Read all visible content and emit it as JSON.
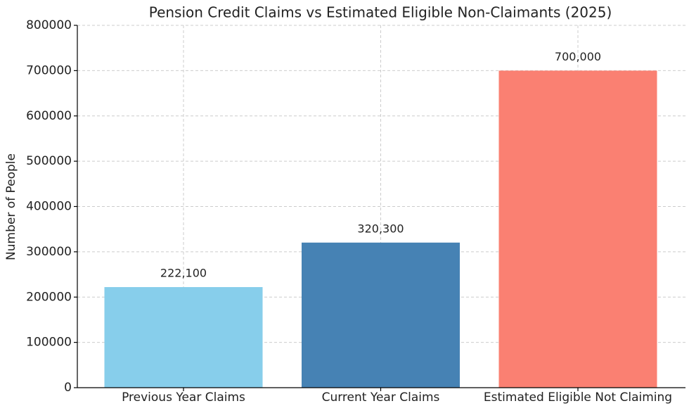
{
  "chart_data": {
    "type": "bar",
    "title": "Pension Credit Claims vs Estimated Eligible Non-Claimants (2025)",
    "y_label": "Number of People",
    "categories": [
      "Previous Year Claims",
      "Current Year Claims",
      "Estimated Eligible Not Claiming"
    ],
    "values": [
      222100,
      320300,
      700000
    ],
    "value_labels": [
      "222,100",
      "320,300",
      "700,000"
    ],
    "colors": [
      "#87ceeb",
      "#4682b4",
      "#fa8072"
    ],
    "ylim": [
      0,
      800000
    ],
    "yticks": [
      0,
      100000,
      200000,
      300000,
      400000,
      500000,
      600000,
      700000,
      800000
    ],
    "grid": true
  }
}
